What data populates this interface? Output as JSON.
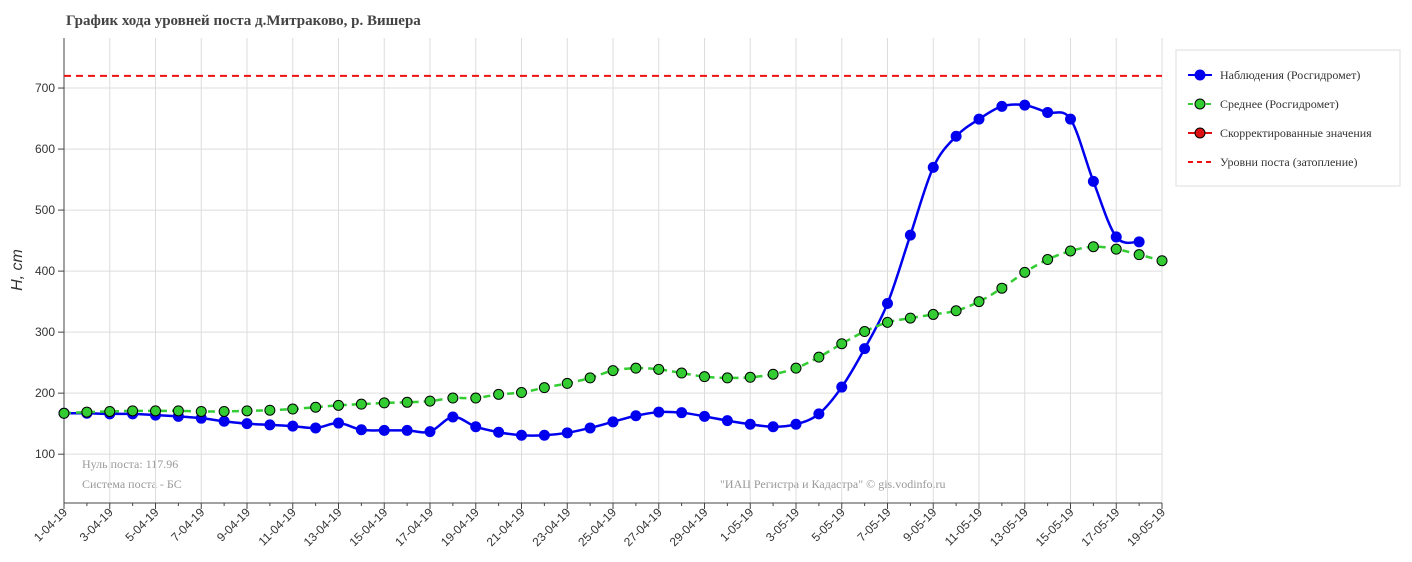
{
  "chart_data": {
    "type": "line",
    "title": "График хода уровней поста д.Митраково, р. Вишера",
    "y_label": "H, cm",
    "categories": [
      "1-04-19",
      null,
      "3-04-19",
      null,
      "5-04-19",
      null,
      "7-04-19",
      null,
      "9-04-19",
      null,
      "11-04-19",
      null,
      "13-04-19",
      null,
      "15-04-19",
      null,
      "17-04-19",
      null,
      "19-04-19",
      null,
      "21-04-19",
      null,
      "23-04-19",
      null,
      "25-04-19",
      null,
      "27-04-19",
      null,
      "29-04-19",
      null,
      "1-05-19",
      null,
      "3-05-19",
      null,
      "5-05-19",
      null,
      "7-05-19",
      null,
      "9-05-19",
      null,
      "11-05-19",
      null,
      "13-05-19",
      null,
      "15-05-19",
      null,
      "17-05-19",
      null,
      "19-05-19"
    ],
    "series": [
      {
        "name": "Наблюдения (Росгидромет)",
        "color": "#0000ee",
        "dash": false,
        "values": [
          167,
          167,
          166,
          166,
          164,
          162,
          159,
          154,
          150,
          148,
          146,
          143,
          151,
          140,
          139,
          139,
          137,
          161,
          145,
          136,
          131,
          131,
          135,
          143,
          153,
          163,
          169,
          168,
          162,
          155,
          149,
          145,
          149,
          166,
          210,
          273,
          347,
          459,
          570,
          621,
          649,
          670,
          672,
          660,
          649,
          547,
          456,
          448,
          null
        ]
      },
      {
        "name": "Среднее (Росгидромет)",
        "color": "#33cc33",
        "dash": true,
        "values": [
          167,
          169,
          170,
          171,
          171,
          171,
          170,
          170,
          171,
          172,
          174,
          177,
          180,
          182,
          184,
          185,
          187,
          192,
          192,
          198,
          201,
          209,
          216,
          225,
          237,
          241,
          239,
          233,
          227,
          225,
          226,
          231,
          241,
          259,
          281,
          301,
          316,
          323,
          329,
          335,
          350,
          372,
          398,
          419,
          433,
          440,
          436,
          427,
          417
        ]
      },
      {
        "name": "Скорректированные значения",
        "color": "#dd1111",
        "dash": false,
        "values": [
          null,
          null,
          null,
          null,
          null,
          null,
          null,
          null,
          null,
          null,
          null,
          null,
          null,
          null,
          null,
          null,
          null,
          null,
          null,
          null,
          null,
          null,
          null,
          null,
          null,
          null,
          null,
          null,
          null,
          null,
          null,
          null,
          null,
          null,
          null,
          null,
          null,
          null,
          null,
          null,
          null,
          null,
          null,
          null,
          null,
          null,
          null,
          null,
          null
        ]
      }
    ],
    "flood_level": {
      "name": "Уровни поста (затопление)",
      "color": "#ee1111",
      "value": 720
    },
    "ylim": [
      20,
      782
    ],
    "yticks": [
      100,
      200,
      300,
      400,
      500,
      600,
      700
    ],
    "grid": true,
    "legend": "top-right",
    "annotations": [
      "Нуль поста: 117.96",
      "Система поста - БС",
      "\"ИАЦ Регистра и Кадастра\" © gis.vodinfo.ru"
    ]
  }
}
